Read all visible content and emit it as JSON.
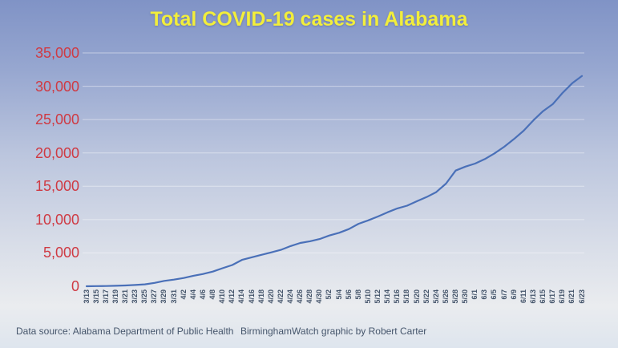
{
  "title": "Total COVID-19 cases in Alabama",
  "footer": {
    "source": "Data source: Alabama Department of Public Health",
    "credit": "BirminghamWatch graphic by Robert Carter"
  },
  "colors": {
    "title_text": "#f2ee3b",
    "y_axis_labels": "#cf3a43",
    "x_axis_labels": "#44546a",
    "footer_text": "#45556b",
    "series_line": "#4a70b8",
    "gridline": "rgba(255,255,255,0.45)",
    "background_top": "#8093c6",
    "background_bottom": "#dee5ee"
  },
  "chart_data": {
    "type": "line",
    "title": "Total COVID-19 cases in Alabama",
    "xlabel": "",
    "ylabel": "",
    "ylim": [
      0,
      35000
    ],
    "y_ticks": [
      0,
      5000,
      10000,
      15000,
      20000,
      25000,
      30000,
      35000
    ],
    "y_tick_labels": [
      "0",
      "5,000",
      "10,000",
      "15,000",
      "20,000",
      "25,000",
      "30,000",
      "35,000"
    ],
    "grid": "horizontal-only",
    "legend": "none",
    "categories": [
      "3/13",
      "3/15",
      "3/17",
      "3/19",
      "3/21",
      "3/23",
      "3/25",
      "3/27",
      "3/29",
      "3/31",
      "4/2",
      "4/4",
      "4/6",
      "4/8",
      "4/10",
      "4/12",
      "4/14",
      "4/16",
      "4/18",
      "4/20",
      "4/22",
      "4/24",
      "4/26",
      "4/28",
      "4/30",
      "5/2",
      "5/4",
      "5/6",
      "5/8",
      "5/10",
      "5/12",
      "5/14",
      "5/16",
      "5/18",
      "5/20",
      "5/22",
      "5/24",
      "5/26",
      "5/28",
      "5/30",
      "6/1",
      "6/3",
      "6/5",
      "6/7",
      "6/9",
      "6/11",
      "6/13",
      "6/15",
      "6/17",
      "6/19",
      "6/21",
      "6/23"
    ],
    "series": [
      {
        "name": "Total COVID-19 cases",
        "values": [
          6,
          23,
          39,
          68,
          124,
          196,
          283,
          506,
          806,
          999,
          1233,
          1580,
          1841,
          2197,
          2703,
          3191,
          3953,
          4345,
          4712,
          5079,
          5465,
          6026,
          6499,
          6750,
          7085,
          7611,
          8025,
          8581,
          9375,
          9889,
          10464,
          11101,
          11674,
          12086,
          12744,
          13378,
          14117,
          15400,
          17350,
          17950,
          18400,
          19072,
          19926,
          20925,
          22082,
          23333,
          24889,
          26272,
          27312,
          29002,
          30454,
          31536
        ]
      }
    ]
  }
}
